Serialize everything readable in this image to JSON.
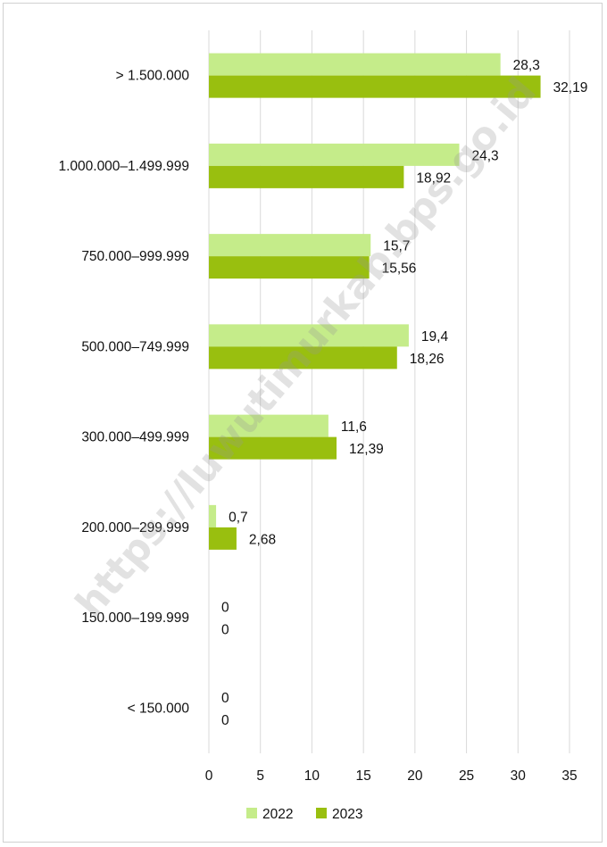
{
  "chart_data": {
    "type": "bar",
    "orientation": "horizontal",
    "categories": [
      "> 1.500.000",
      "1.000.000–1.499.999",
      "750.000–999.999",
      "500.000–749.999",
      "300.000–499.999",
      "200.000–299.999",
      "150.000–199.999",
      "< 150.000"
    ],
    "series": [
      {
        "name": "2022",
        "color": "#c5ec8a",
        "values": [
          28.3,
          24.3,
          15.7,
          19.4,
          11.6,
          0.7,
          0,
          0
        ],
        "labels": [
          "28,3",
          "24,3",
          "15,7",
          "19,4",
          "11,6",
          "0,7",
          "0",
          "0"
        ]
      },
      {
        "name": "2023",
        "color": "#99bf0f",
        "values": [
          32.19,
          18.92,
          15.56,
          18.26,
          12.39,
          2.68,
          0,
          0
        ],
        "labels": [
          "32,19",
          "18,92",
          "15,56",
          "18,26",
          "12,39",
          "2,68",
          "0",
          "0"
        ]
      }
    ],
    "xlim": [
      0,
      35
    ],
    "xticks": [
      "0",
      "5",
      "10",
      "15",
      "20",
      "25",
      "30",
      "35"
    ],
    "grid": true,
    "legend": "bottom",
    "title": "",
    "xlabel": "",
    "ylabel": ""
  },
  "watermark": "https://luwutimurkab.bps.go.id"
}
